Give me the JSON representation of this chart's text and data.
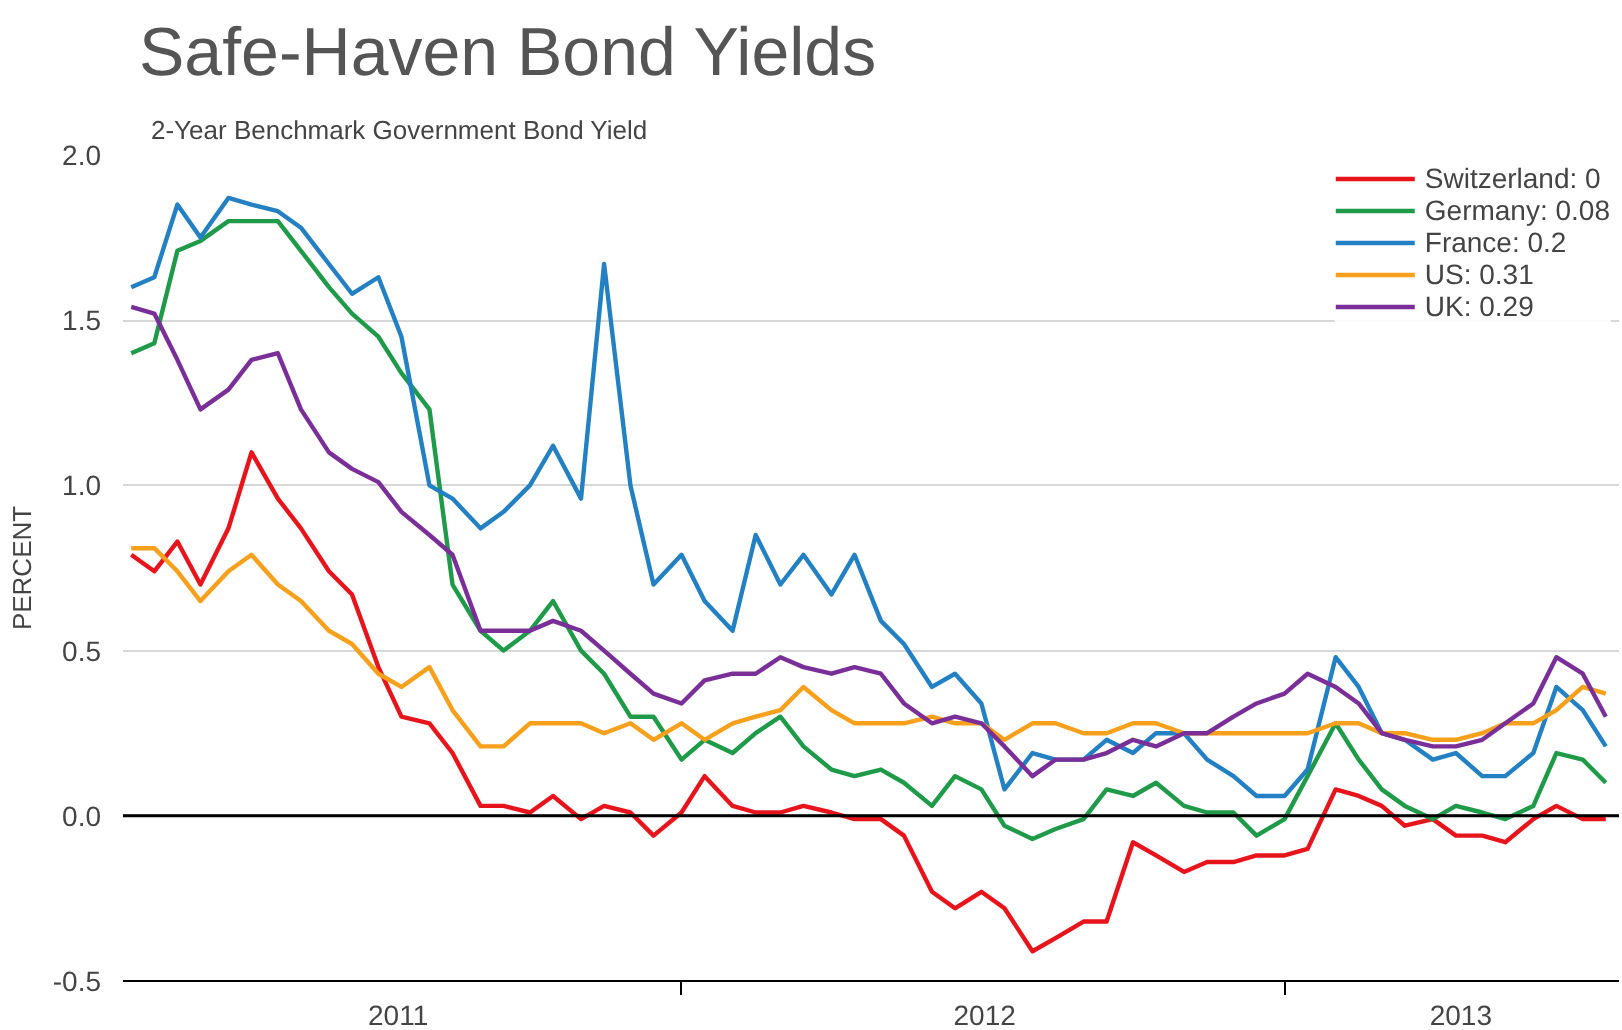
{
  "chart_data": {
    "type": "line",
    "title": "Safe-Haven Bond Yields",
    "subtitle": "2-Year Benchmark Government Bond Yield",
    "ylabel": "PERCENT",
    "x": [
      "2011-02-01",
      "2011-02-15",
      "2011-03-01",
      "2011-03-15",
      "2011-04-01",
      "2011-04-15",
      "2011-05-01",
      "2011-05-15",
      "2011-06-01",
      "2011-06-15",
      "2011-07-01",
      "2011-07-15",
      "2011-08-01",
      "2011-08-15",
      "2011-09-01",
      "2011-09-15",
      "2011-10-01",
      "2011-10-15",
      "2011-11-01",
      "2011-11-15",
      "2011-12-01",
      "2011-12-15",
      "2012-01-01",
      "2012-01-15",
      "2012-02-01",
      "2012-02-15",
      "2012-03-01",
      "2012-03-15",
      "2012-04-01",
      "2012-04-15",
      "2012-05-01",
      "2012-05-15",
      "2012-06-01",
      "2012-06-15",
      "2012-07-01",
      "2012-07-15",
      "2012-08-01",
      "2012-08-15",
      "2012-09-01",
      "2012-09-15",
      "2012-10-01",
      "2012-10-15",
      "2012-11-01",
      "2012-11-15",
      "2012-12-01",
      "2012-12-15",
      "2013-01-01",
      "2013-01-15",
      "2013-02-01",
      "2013-02-15",
      "2013-03-01",
      "2013-03-15",
      "2013-04-01",
      "2013-04-15",
      "2013-05-01",
      "2013-05-15",
      "2013-06-01",
      "2013-06-15",
      "2013-07-01",
      "2013-07-15"
    ],
    "series": [
      {
        "name": "Switzerland: 0",
        "color": "#e8141b",
        "values": [
          0.79,
          0.74,
          0.83,
          0.7,
          0.87,
          1.1,
          0.96,
          0.87,
          0.74,
          0.67,
          0.45,
          0.3,
          0.28,
          0.19,
          0.03,
          0.03,
          0.01,
          0.06,
          -0.01,
          0.03,
          0.01,
          -0.06,
          0.01,
          0.12,
          0.03,
          0.01,
          0.01,
          0.03,
          0.01,
          -0.01,
          -0.01,
          -0.06,
          -0.23,
          -0.28,
          -0.23,
          -0.28,
          -0.41,
          -0.37,
          -0.32,
          -0.32,
          -0.08,
          -0.12,
          -0.17,
          -0.14,
          -0.14,
          -0.12,
          -0.12,
          -0.1,
          0.08,
          0.06,
          0.03,
          -0.03,
          -0.01,
          -0.06,
          -0.06,
          -0.08,
          -0.01,
          0.03,
          -0.01,
          -0.01
        ]
      },
      {
        "name": "Germany: 0.08",
        "color": "#1e9a48",
        "values": [
          1.4,
          1.43,
          1.71,
          1.74,
          1.8,
          1.8,
          1.8,
          1.71,
          1.6,
          1.52,
          1.45,
          1.34,
          1.23,
          0.7,
          0.56,
          0.5,
          0.56,
          0.65,
          0.5,
          0.43,
          0.3,
          0.3,
          0.17,
          0.23,
          0.19,
          0.25,
          0.3,
          0.21,
          0.14,
          0.12,
          0.14,
          0.1,
          0.03,
          0.12,
          0.08,
          -0.03,
          -0.07,
          -0.04,
          -0.01,
          0.08,
          0.06,
          0.1,
          0.03,
          0.01,
          0.01,
          -0.06,
          -0.01,
          0.12,
          0.28,
          0.17,
          0.08,
          0.03,
          -0.01,
          0.03,
          0.01,
          -0.01,
          0.03,
          0.19,
          0.17,
          0.1
        ]
      },
      {
        "name": "France: 0.2",
        "color": "#2380c3",
        "values": [
          1.6,
          1.63,
          1.85,
          1.75,
          1.87,
          1.85,
          1.83,
          1.78,
          1.67,
          1.58,
          1.63,
          1.45,
          1.0,
          0.96,
          0.87,
          0.92,
          1.0,
          1.12,
          0.96,
          1.67,
          1.0,
          0.7,
          0.79,
          0.65,
          0.56,
          0.85,
          0.7,
          0.79,
          0.67,
          0.79,
          0.59,
          0.52,
          0.39,
          0.43,
          0.34,
          0.08,
          0.19,
          0.17,
          0.17,
          0.23,
          0.19,
          0.25,
          0.25,
          0.17,
          0.12,
          0.06,
          0.06,
          0.14,
          0.48,
          0.39,
          0.25,
          0.23,
          0.17,
          0.19,
          0.12,
          0.12,
          0.19,
          0.39,
          0.32,
          0.21
        ]
      },
      {
        "name": "US: 0.31",
        "color": "#f7a01c",
        "values": [
          0.81,
          0.81,
          0.74,
          0.65,
          0.74,
          0.79,
          0.7,
          0.65,
          0.56,
          0.52,
          0.43,
          0.39,
          0.45,
          0.32,
          0.21,
          0.21,
          0.28,
          0.28,
          0.28,
          0.25,
          0.28,
          0.23,
          0.28,
          0.23,
          0.28,
          0.3,
          0.32,
          0.39,
          0.32,
          0.28,
          0.28,
          0.28,
          0.3,
          0.28,
          0.28,
          0.23,
          0.28,
          0.28,
          0.25,
          0.25,
          0.28,
          0.28,
          0.25,
          0.25,
          0.25,
          0.25,
          0.25,
          0.25,
          0.28,
          0.28,
          0.25,
          0.25,
          0.23,
          0.23,
          0.25,
          0.28,
          0.28,
          0.32,
          0.39,
          0.37
        ]
      },
      {
        "name": "UK: 0.29",
        "color": "#7a2f98",
        "values": [
          1.54,
          1.52,
          1.38,
          1.23,
          1.29,
          1.38,
          1.4,
          1.23,
          1.1,
          1.05,
          1.01,
          0.92,
          0.85,
          0.79,
          0.56,
          0.56,
          0.56,
          0.59,
          0.56,
          0.5,
          0.43,
          0.37,
          0.34,
          0.41,
          0.43,
          0.43,
          0.48,
          0.45,
          0.43,
          0.45,
          0.43,
          0.34,
          0.28,
          0.3,
          0.28,
          0.21,
          0.12,
          0.17,
          0.17,
          0.19,
          0.23,
          0.21,
          0.25,
          0.25,
          0.3,
          0.34,
          0.37,
          0.43,
          0.39,
          0.34,
          0.25,
          0.23,
          0.21,
          0.21,
          0.23,
          0.28,
          0.34,
          0.48,
          0.43,
          0.3
        ]
      }
    ],
    "xlim": [
      "2011-01-27",
      "2013-07-23"
    ],
    "xticks": [
      {
        "value": "2011-07-13",
        "label": "2011"
      },
      {
        "value": "2012-01-01",
        "label": null
      },
      {
        "value": "2012-07-03",
        "label": "2012"
      },
      {
        "value": "2013-01-01",
        "label": null
      },
      {
        "value": "2013-04-18",
        "label": "2013"
      }
    ],
    "ylim": [
      -0.5,
      2.0
    ],
    "yticks": [
      {
        "value": -0.5,
        "label": "-0.5"
      },
      {
        "value": 0,
        "label": "0.0"
      },
      {
        "value": 0.5,
        "label": "0.5"
      },
      {
        "value": 1,
        "label": "1.0"
      },
      {
        "value": 1.5,
        "label": "1.5"
      },
      {
        "value": 2,
        "label": "2.0"
      }
    ],
    "ref_lines": [
      {
        "axis": "y",
        "value": 0,
        "label": null,
        "color": "#000000"
      }
    ],
    "grid": "y",
    "legend": "top right",
    "line_style": "solid",
    "marker": "none"
  }
}
